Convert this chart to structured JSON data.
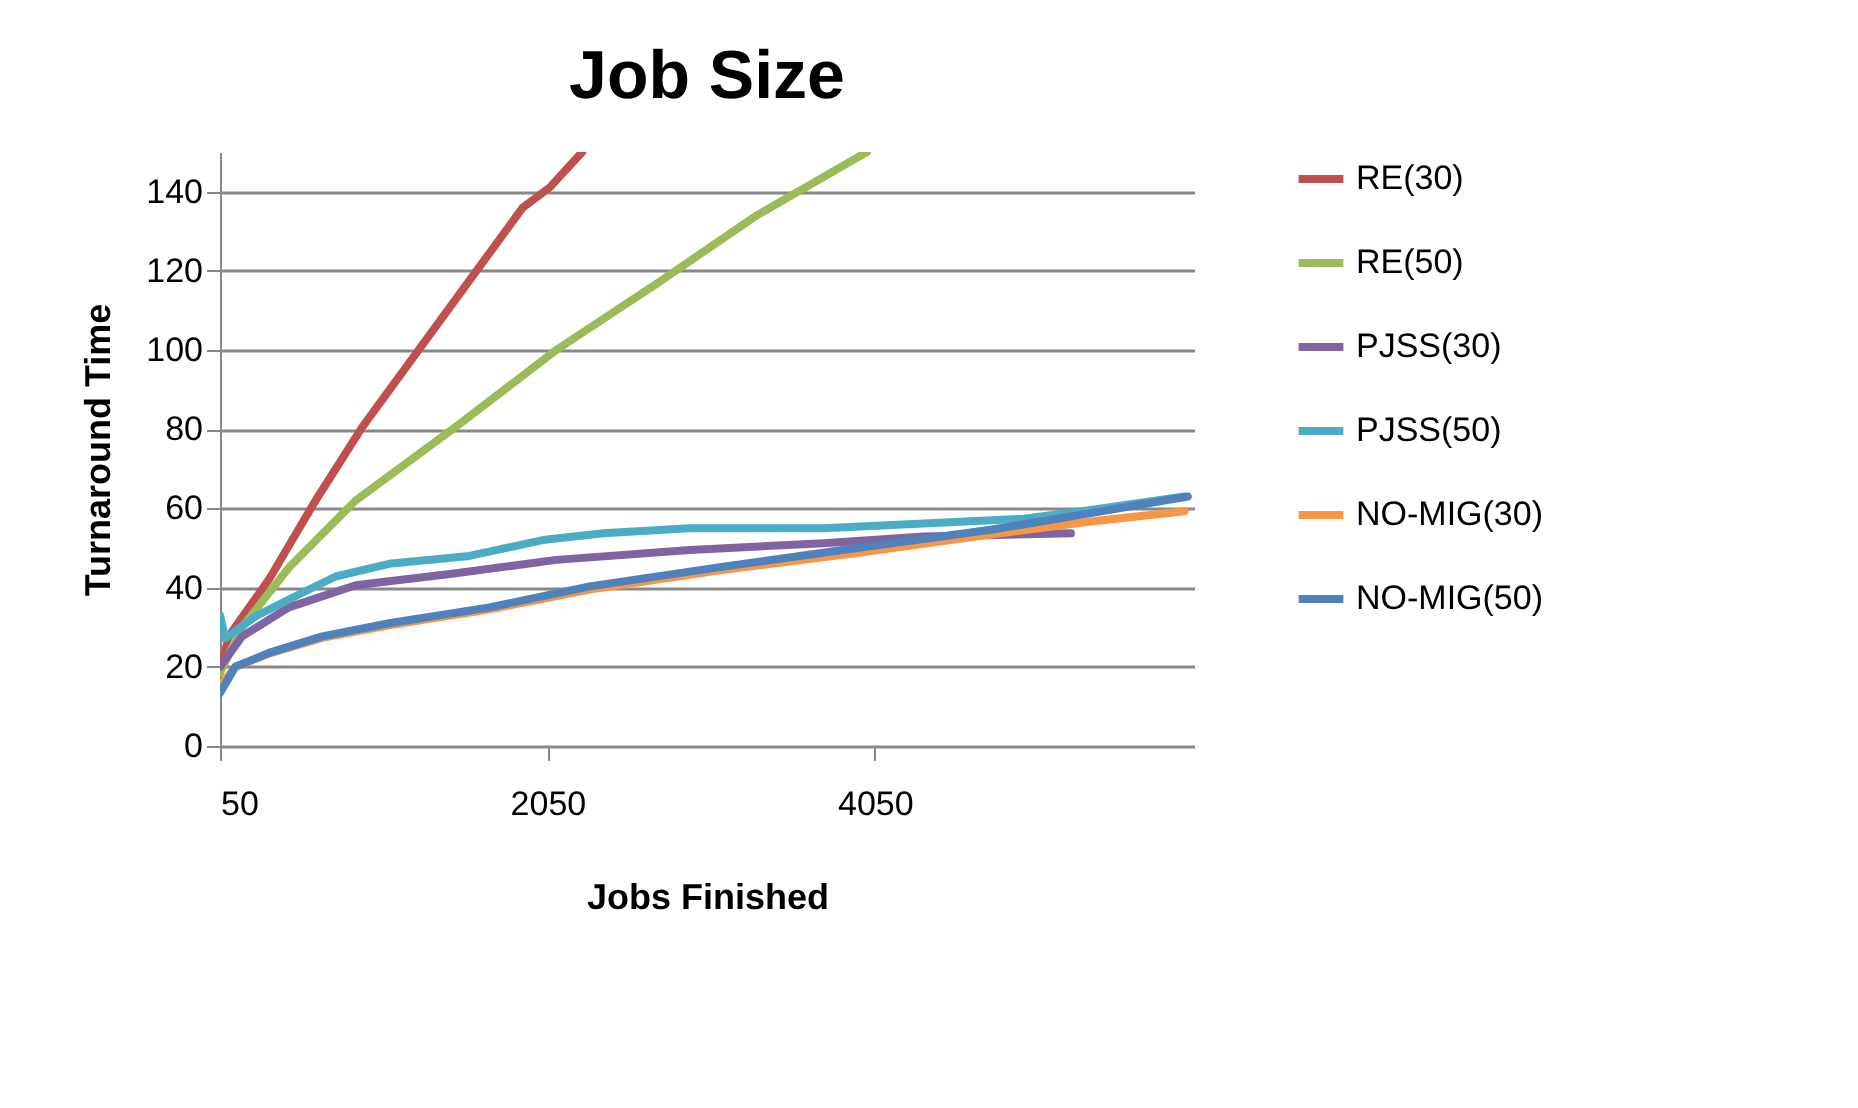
{
  "chart_data": {
    "type": "line",
    "title": "Job Size",
    "xlabel": "Jobs Finished",
    "ylabel": "Turnaround Time",
    "xlim": [
      50,
      6000
    ],
    "xticks": [
      50,
      2050,
      4050
    ],
    "ylim": [
      0,
      150
    ],
    "yticks": [
      0,
      20,
      40,
      60,
      80,
      100,
      120,
      140
    ],
    "grid": "y",
    "legend": "right",
    "marker": "none",
    "line_style": "solid",
    "series": [
      {
        "name": "RE(30)",
        "color": "#c0504d",
        "x": [
          50,
          103,
          348,
          634,
          920,
          1246,
          1573,
          1900,
          2063,
          2263
        ],
        "values": [
          18.5,
          27.7,
          42,
          62,
          80.6,
          99,
          117.5,
          136,
          141,
          150
        ]
      },
      {
        "name": "RE(50)",
        "color": "#9bbb59",
        "x": [
          50,
          185,
          470,
          879,
          1491,
          2104,
          2716,
          3329,
          4002
        ],
        "values": [
          18.5,
          30,
          45,
          62,
          80.6,
          100,
          116.7,
          134,
          150
        ]
      },
      {
        "name": "PJSS(30)",
        "color": "#8064a2",
        "x": [
          50,
          185,
          470,
          879,
          1491,
          2104,
          2920,
          3737,
          4349,
          5248
        ],
        "values": [
          20,
          27.7,
          35,
          40.6,
          43.6,
          47,
          49.5,
          51.2,
          52.9,
          53.7
        ]
      },
      {
        "name": "PJSS(50)",
        "color": "#4bacc6",
        "x": [
          50,
          82,
          266,
          470,
          756,
          1083,
          1573,
          2022,
          2390,
          2920,
          3737,
          4349,
          4962,
          5370,
          5942
        ],
        "values": [
          33,
          27.2,
          32.7,
          37,
          42.8,
          46,
          48,
          52,
          53.7,
          55,
          55,
          56.2,
          57.4,
          59.6,
          63
        ]
      },
      {
        "name": "NO-MIG(30)",
        "color": "#f79646",
        "x": [
          50,
          144,
          348,
          675,
          1083,
          1696,
          2308,
          3125,
          3941,
          4758,
          5370,
          5942
        ],
        "values": [
          15,
          20,
          23.3,
          27.3,
          30.5,
          34.5,
          39.5,
          44.5,
          48.7,
          53.4,
          56.7,
          59.3
        ]
      },
      {
        "name": "NO-MIG(50)",
        "color": "#4f81bd",
        "x": [
          50,
          144,
          348,
          675,
          1083,
          1696,
          2308,
          3125,
          3941,
          4758,
          5370,
          5962
        ],
        "values": [
          13.4,
          20,
          23.5,
          27.7,
          31,
          35,
          40.3,
          45.3,
          50,
          54.6,
          58.8,
          63
        ]
      }
    ]
  }
}
